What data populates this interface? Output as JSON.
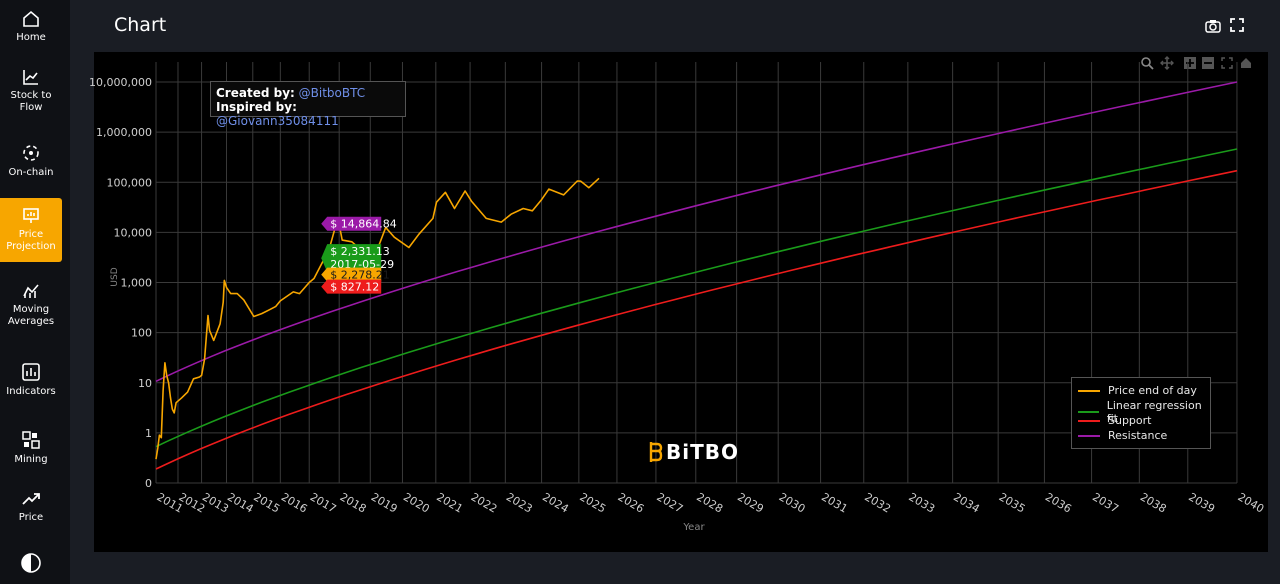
{
  "sidebar": {
    "items": [
      {
        "label": "Home",
        "icon": "home-icon"
      },
      {
        "label": "Stock to Flow",
        "icon": "line-chart-icon"
      },
      {
        "label": "On-chain",
        "icon": "network-icon"
      },
      {
        "label": "Price Projection",
        "icon": "presentation-chart-icon",
        "active": true
      },
      {
        "label": "Moving Averages",
        "icon": "moving-average-icon"
      },
      {
        "label": "Indicators",
        "icon": "bar-indicator-icon"
      },
      {
        "label": "Mining",
        "icon": "mining-icon"
      },
      {
        "label": "Price",
        "icon": "trend-up-icon"
      },
      {
        "label": "",
        "icon": "theme-toggle-icon"
      }
    ]
  },
  "header": {
    "title": "Chart",
    "icons": [
      "camera-icon",
      "fullscreen-icon"
    ]
  },
  "credits": {
    "created_label": "Created by:",
    "created_handle": "@BitboBTC",
    "inspired_label": "Inspired by:",
    "inspired_handle": "@Giovann35084111"
  },
  "logo_text": "BiTBO",
  "hover_labels": {
    "resistance": "$ 14,864.84",
    "fit": "$ 2,331.13",
    "date": "2017-05-29",
    "price": "$ 2,278.21",
    "support": "$ 827.12"
  },
  "colors": {
    "price": "#f7a600",
    "fit": "#1a9b1a",
    "support": "#ee1c1c",
    "resistance": "#9b1aa8",
    "accent": "#f7a600"
  },
  "chart_data": {
    "type": "line",
    "yscale": "log",
    "ylabel": "USD",
    "xlabel": "Year",
    "y_ticks": [
      "0",
      "1",
      "10",
      "100",
      "1,000",
      "10,000",
      "100,000",
      "1,000,000",
      "10,000,000"
    ],
    "x_ticks": [
      "2011",
      "2012",
      "2013",
      "2014",
      "2015",
      "2016",
      "2017",
      "2018",
      "2019",
      "2020",
      "2021",
      "2022",
      "2023",
      "2024",
      "2025",
      "2026",
      "2027",
      "2028",
      "2029",
      "2030",
      "2031",
      "2032",
      "2033",
      "2034",
      "2035",
      "2036",
      "2037",
      "2038",
      "2039",
      "2040"
    ],
    "legend": [
      "Price end of day",
      "Linear regression fit",
      "Support",
      "Resistance"
    ],
    "legend_position": "bottom-right",
    "grid": true,
    "series": [
      {
        "name": "Resistance",
        "x": [
          "2011-01-01",
          "2040-01-01"
        ],
        "y": [
          10.7,
          10000000
        ]
      },
      {
        "name": "Linear regression fit",
        "x": [
          "2011-01-01",
          "2040-01-01"
        ],
        "y": [
          0.53,
          460000
        ]
      },
      {
        "name": "Support",
        "x": [
          "2011-01-01",
          "2040-01-01"
        ],
        "y": [
          0.19,
          170000
        ]
      },
      {
        "name": "Price end of day",
        "x": [
          "2011-01-01",
          "2011-02-01",
          "2011-03-01",
          "2011-04-01",
          "2011-05-01",
          "2011-06-01",
          "2011-07-01",
          "2011-08-01",
          "2011-09-01",
          "2011-10-01",
          "2011-11-01",
          "2011-12-01",
          "2012-03-01",
          "2012-06-01",
          "2012-09-01",
          "2012-12-01",
          "2013-01-01",
          "2013-02-15",
          "2013-04-08",
          "2013-05-01",
          "2013-07-01",
          "2013-10-01",
          "2013-11-15",
          "2013-11-30",
          "2014-01-01",
          "2014-03-01",
          "2014-06-01",
          "2014-09-01",
          "2015-01-15",
          "2015-05-01",
          "2015-08-01",
          "2015-11-01",
          "2016-01-01",
          "2016-06-15",
          "2016-09-01",
          "2017-01-01",
          "2017-03-01",
          "2017-05-29",
          "2017-09-01",
          "2017-12-17",
          "2018-02-06",
          "2018-06-01",
          "2018-11-15",
          "2019-01-01",
          "2019-04-01",
          "2019-06-26",
          "2019-10-01",
          "2020-03-12",
          "2020-07-01",
          "2020-12-01",
          "2021-01-08",
          "2021-04-14",
          "2021-07-20",
          "2021-11-10",
          "2022-01-15",
          "2022-06-18",
          "2022-11-21",
          "2023-03-01",
          "2023-07-01",
          "2023-10-01",
          "2024-01-01",
          "2024-03-14",
          "2024-08-05",
          "2024-12-17",
          "2025-01-20",
          "2025-04-08",
          "2025-07-14"
        ],
        "y": [
          0.3,
          0.5,
          0.9,
          0.8,
          7,
          25,
          14,
          10,
          5,
          3,
          2.5,
          4,
          5,
          6.5,
          12,
          13,
          14,
          30,
          220,
          110,
          70,
          150,
          400,
          1100,
          800,
          600,
          600,
          450,
          210,
          240,
          280,
          330,
          430,
          650,
          600,
          1000,
          1200,
          2278,
          4500,
          19500,
          7000,
          6500,
          3600,
          3800,
          5000,
          12500,
          8000,
          5000,
          9200,
          19000,
          40000,
          63000,
          30000,
          67000,
          42000,
          19000,
          16000,
          23000,
          30000,
          27000,
          45000,
          73000,
          56000,
          106000,
          105000,
          78000,
          120000
        ]
      }
    ]
  }
}
